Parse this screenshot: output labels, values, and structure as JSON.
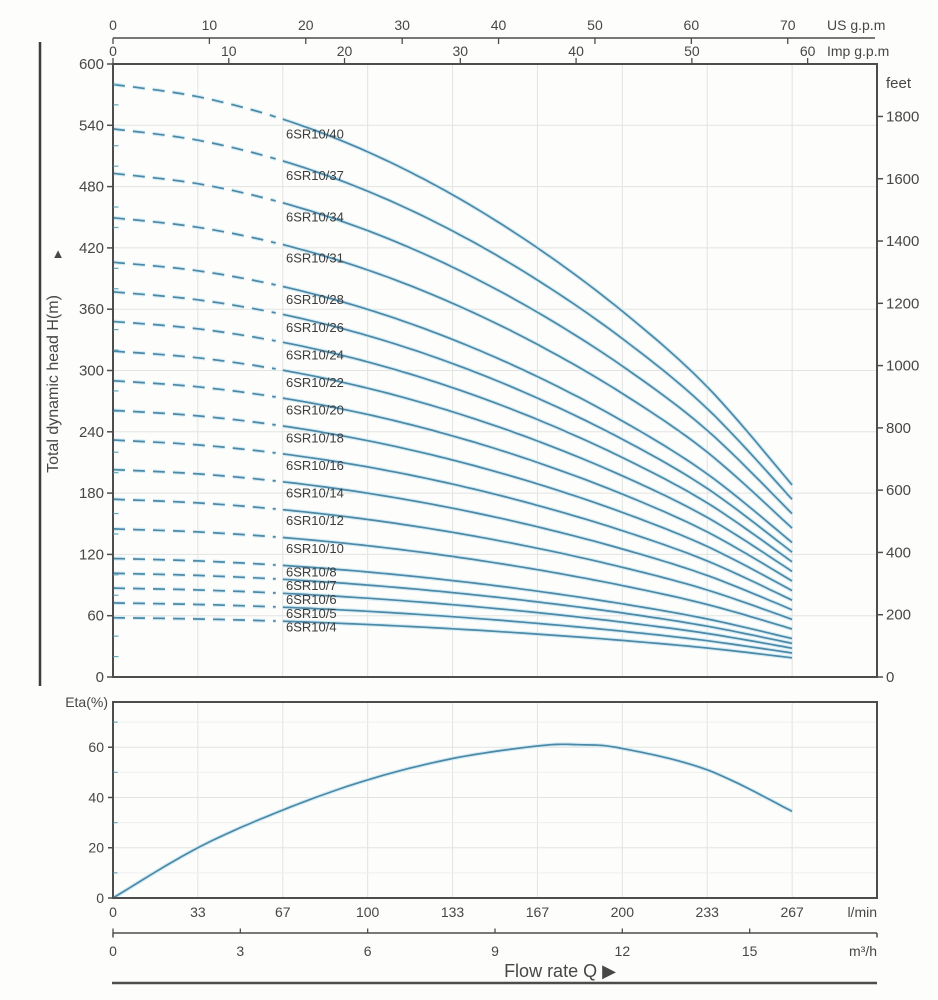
{
  "colors": {
    "background": "#fdfdfb",
    "axis": "#4d4d4d",
    "text": "#474747",
    "grid": "#e3e3e1",
    "grid_minor": "#efefec",
    "curve": "#4d89a6",
    "curve_halo": "#d4ecf5",
    "minor_tick": "#62a8c6",
    "series_label": "#3c3c3c"
  },
  "chart_data": [
    {
      "type": "line",
      "name": "head-flow-curves",
      "ylabel": "Total dynamic head H(m)",
      "ylabel_arrow": "▲",
      "y2label": "feet",
      "x_axes": [
        {
          "id": "us_gpm",
          "label": "US g.p.m",
          "ticks": [
            0,
            10,
            20,
            30,
            40,
            50,
            60,
            70
          ],
          "lmin_per_unit": 3.785
        },
        {
          "id": "imp_gpm",
          "label": "Imp g.p.m",
          "ticks": [
            0,
            10,
            20,
            30,
            40,
            50,
            60
          ],
          "lmin_per_unit": 4.546
        }
      ],
      "xlim_lmin": [
        0,
        300
      ],
      "ylim_m": [
        0,
        600
      ],
      "y_ticks_m": [
        0,
        60,
        120,
        180,
        240,
        300,
        360,
        420,
        480,
        540,
        600
      ],
      "y_minor_step_m": 20,
      "y2_ticks_feet": [
        0,
        200,
        400,
        600,
        800,
        1000,
        1200,
        1400,
        1600,
        1800
      ],
      "x_grid_lmin": [
        33.33,
        66.67,
        100,
        133.33,
        166.67,
        200,
        233.33,
        266.67
      ],
      "dashed_below_lmin": 65,
      "q_samples_lmin": [
        0,
        33.33,
        66.67,
        100,
        133.33,
        166.67,
        200,
        233.33,
        266.67
      ],
      "series": [
        {
          "label": "6SR10/40",
          "stages": 40,
          "head_m": [
            580.0,
            568.0,
            546.0,
            514.0,
            472.0,
            420.0,
            358.0,
            284.0,
            188.0
          ]
        },
        {
          "label": "6SR10/37",
          "stages": 37,
          "head_m": [
            536.5,
            525.4,
            505.1,
            475.5,
            436.6,
            388.5,
            331.2,
            262.7,
            173.9
          ]
        },
        {
          "label": "6SR10/34",
          "stages": 34,
          "head_m": [
            493.0,
            482.8,
            464.1,
            436.9,
            401.2,
            357.0,
            304.3,
            241.4,
            159.8
          ]
        },
        {
          "label": "6SR10/31",
          "stages": 31,
          "head_m": [
            449.5,
            440.2,
            423.2,
            398.4,
            365.8,
            325.5,
            277.5,
            220.1,
            145.7
          ]
        },
        {
          "label": "6SR10/28",
          "stages": 28,
          "head_m": [
            406.0,
            397.6,
            382.2,
            359.8,
            330.4,
            294.0,
            250.6,
            198.8,
            131.6
          ]
        },
        {
          "label": "6SR10/26",
          "stages": 26,
          "head_m": [
            377.0,
            369.2,
            354.9,
            334.1,
            306.8,
            273.0,
            232.7,
            184.6,
            122.2
          ]
        },
        {
          "label": "6SR10/24",
          "stages": 24,
          "head_m": [
            348.0,
            340.8,
            327.6,
            308.4,
            283.2,
            252.0,
            214.8,
            170.4,
            112.8
          ]
        },
        {
          "label": "6SR10/22",
          "stages": 22,
          "head_m": [
            319.0,
            312.4,
            300.3,
            282.7,
            259.6,
            231.0,
            196.9,
            156.2,
            103.4
          ]
        },
        {
          "label": "6SR10/20",
          "stages": 20,
          "head_m": [
            290.0,
            284.0,
            273.0,
            257.0,
            236.0,
            210.0,
            179.0,
            142.0,
            94.0
          ]
        },
        {
          "label": "6SR10/18",
          "stages": 18,
          "head_m": [
            261.0,
            255.6,
            245.7,
            231.3,
            212.4,
            189.0,
            161.1,
            127.8,
            84.6
          ]
        },
        {
          "label": "6SR10/16",
          "stages": 16,
          "head_m": [
            232.0,
            227.2,
            218.4,
            205.6,
            188.8,
            168.0,
            143.2,
            113.6,
            75.2
          ]
        },
        {
          "label": "6SR10/14",
          "stages": 14,
          "head_m": [
            203.0,
            198.8,
            191.1,
            179.9,
            165.2,
            147.0,
            125.3,
            99.4,
            65.8
          ]
        },
        {
          "label": "6SR10/12",
          "stages": 12,
          "head_m": [
            174.0,
            170.4,
            163.8,
            154.2,
            141.6,
            126.0,
            107.4,
            85.2,
            56.4
          ]
        },
        {
          "label": "6SR10/10",
          "stages": 10,
          "head_m": [
            145.0,
            142.0,
            136.5,
            128.5,
            118.0,
            105.0,
            89.5,
            71.0,
            47.0
          ]
        },
        {
          "label": "6SR10/8",
          "stages": 8,
          "head_m": [
            116.0,
            113.6,
            109.2,
            102.8,
            94.4,
            84.0,
            71.6,
            56.8,
            37.6
          ]
        },
        {
          "label": "6SR10/7",
          "stages": 7,
          "head_m": [
            101.5,
            99.4,
            95.6,
            90.0,
            82.6,
            73.5,
            62.7,
            49.7,
            32.9
          ]
        },
        {
          "label": "6SR10/6",
          "stages": 6,
          "head_m": [
            87.0,
            85.2,
            81.9,
            77.1,
            70.8,
            63.0,
            53.7,
            42.6,
            28.2
          ]
        },
        {
          "label": "6SR10/5",
          "stages": 5,
          "head_m": [
            72.5,
            71.0,
            68.3,
            64.3,
            59.0,
            52.5,
            44.8,
            35.5,
            23.5
          ]
        },
        {
          "label": "6SR10/4",
          "stages": 4,
          "head_m": [
            58.0,
            56.8,
            54.6,
            51.4,
            47.2,
            42.0,
            35.8,
            28.4,
            18.8
          ]
        }
      ]
    },
    {
      "type": "line",
      "name": "efficiency-curve",
      "ylabel": "Eta(%)",
      "ylim": [
        0,
        78
      ],
      "y_ticks": [
        0,
        20,
        40,
        60
      ],
      "y_minor_ticks": [
        10,
        30,
        50,
        70
      ],
      "x_ticks": {
        "values_lmin": [
          0,
          33.33,
          66.67,
          100,
          133.33,
          166.67,
          200,
          233.33,
          266.67
        ],
        "labels": [
          "0",
          "33",
          "67",
          "100",
          "133",
          "167",
          "200",
          "233",
          "267"
        ],
        "unit": "l/min"
      },
      "x2_ticks": {
        "values_m3h": [
          0,
          3,
          6,
          9,
          12,
          15
        ],
        "lmin_per_unit": 16.6667,
        "unit": "m³/h"
      },
      "xlabel": "Flow rate Q ▶",
      "q_lmin": [
        0,
        33.33,
        66.67,
        100,
        133.33,
        166.67,
        183,
        200,
        233.33,
        266.67
      ],
      "eta_pct": [
        0,
        20,
        35,
        47,
        55.5,
        60.5,
        61,
        59.5,
        51,
        34.5
      ]
    }
  ]
}
